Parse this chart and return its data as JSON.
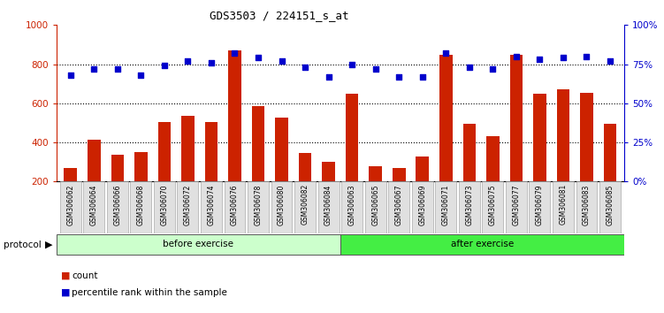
{
  "title": "GDS3503 / 224151_s_at",
  "categories": [
    "GSM306062",
    "GSM306064",
    "GSM306066",
    "GSM306068",
    "GSM306070",
    "GSM306072",
    "GSM306074",
    "GSM306076",
    "GSM306078",
    "GSM306080",
    "GSM306082",
    "GSM306084",
    "GSM306063",
    "GSM306065",
    "GSM306067",
    "GSM306069",
    "GSM306071",
    "GSM306073",
    "GSM306075",
    "GSM306077",
    "GSM306079",
    "GSM306081",
    "GSM306083",
    "GSM306085"
  ],
  "bar_values": [
    270,
    415,
    335,
    350,
    505,
    535,
    505,
    870,
    585,
    525,
    345,
    300,
    650,
    280,
    270,
    330,
    850,
    495,
    430,
    850,
    650,
    670,
    655,
    495
  ],
  "percentile_values": [
    68,
    72,
    72,
    68,
    74,
    77,
    76,
    82,
    79,
    77,
    73,
    67,
    75,
    72,
    67,
    67,
    82,
    73,
    72,
    80,
    78,
    79,
    80,
    77
  ],
  "before_count": 12,
  "after_count": 12,
  "before_label": "before exercise",
  "after_label": "after exercise",
  "protocol_label": "protocol",
  "before_color": "#ccffcc",
  "after_color": "#44ee44",
  "bar_color": "#cc2200",
  "dot_color": "#0000cc",
  "ylim_left": [
    200,
    1000
  ],
  "ylim_right": [
    0,
    100
  ],
  "yticks_left": [
    200,
    400,
    600,
    800,
    1000
  ],
  "yticks_right": [
    0,
    25,
    50,
    75,
    100
  ],
  "grid_values": [
    400,
    600,
    800
  ],
  "legend_count_label": "count",
  "legend_pct_label": "percentile rank within the sample"
}
